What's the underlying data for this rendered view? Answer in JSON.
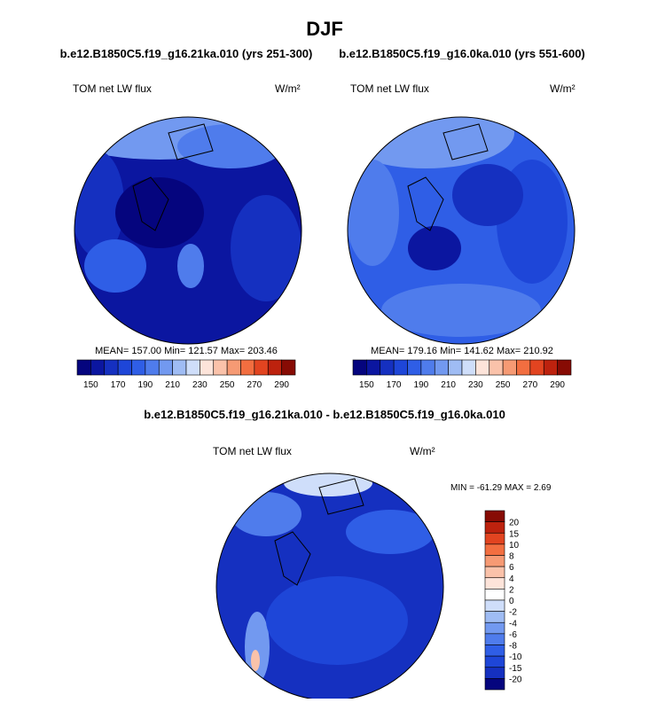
{
  "header": {
    "title": "DJF"
  },
  "panels": [
    {
      "title": "b.e12.B1850C5.f19_g16.21ka.010 (yrs 251-300)",
      "variable": "TOM net LW flux",
      "units": "W/m²",
      "stats": "MEAN= 157.00  Min= 121.57  Max= 203.46"
    },
    {
      "title": "b.e12.B1850C5.f19_g16.0ka.010 (yrs 551-600)",
      "variable": "TOM net LW flux",
      "units": "W/m²",
      "stats": "MEAN= 179.16  Min= 141.62  Max= 210.92"
    }
  ],
  "colorbar": {
    "labels": [
      "150",
      "170",
      "190",
      "210",
      "230",
      "250",
      "270",
      "290"
    ],
    "colors": [
      "#05057e",
      "#0b16a0",
      "#1530c0",
      "#1e46d8",
      "#2f5ee6",
      "#4f7cec",
      "#7299f0",
      "#9fbcf4",
      "#cfdefa",
      "#fde4da",
      "#fac2aa",
      "#f69a74",
      "#f26e40",
      "#e24420",
      "#bd220e",
      "#870b04"
    ]
  },
  "difference": {
    "title": "b.e12.B1850C5.f19_g16.21ka.010 - b.e12.B1850C5.f19_g16.0ka.010",
    "variable": "TOM net LW flux",
    "units": "W/m²",
    "stats": "MIN = -61.29 MAX =   2.69",
    "colorbar": {
      "labels": [
        "20",
        "15",
        "10",
        "8",
        "6",
        "4",
        "2",
        "0",
        "-2",
        "-4",
        "-6",
        "-8",
        "-10",
        "-15",
        "-20"
      ],
      "colors": [
        "#870b04",
        "#bd220e",
        "#e24420",
        "#f26e40",
        "#f69a74",
        "#fac2aa",
        "#fde4da",
        "#ffffff",
        "#cfdefa",
        "#9fbcf4",
        "#7299f0",
        "#4f7cec",
        "#2f5ee6",
        "#1e46d8",
        "#1530c0",
        "#05057e"
      ]
    }
  }
}
